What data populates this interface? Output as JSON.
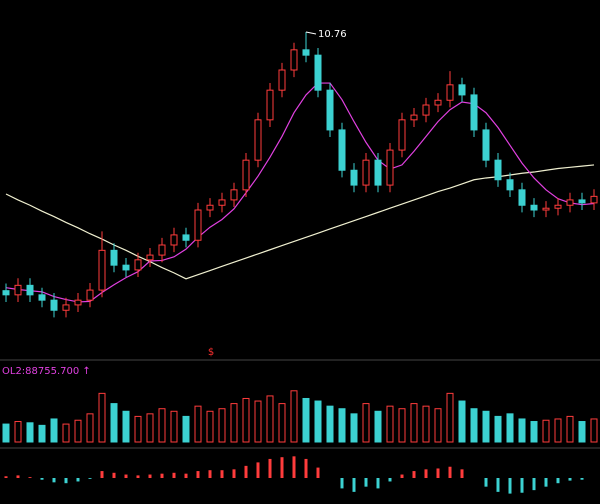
{
  "chart_data": [
    {
      "type": "candlestick",
      "high_label": "10.76",
      "signal": "$",
      "up_color": "#ff3c3c",
      "down_color": "#3cd2d2",
      "ylim": [
        5.4,
        11.3
      ],
      "open": [
        6.4,
        6.33,
        6.49,
        6.33,
        6.24,
        6.07,
        6.16,
        6.24,
        6.41,
        7.08,
        6.83,
        6.75,
        6.92,
        7.0,
        7.17,
        7.34,
        7.25,
        7.76,
        7.84,
        7.93,
        8.1,
        8.6,
        9.28,
        9.78,
        10.12,
        10.46,
        10.37,
        9.78,
        9.11,
        8.43,
        8.18,
        8.6,
        8.18,
        8.77,
        9.28,
        9.36,
        9.53,
        9.61,
        9.87,
        9.7,
        9.11,
        8.6,
        8.27,
        8.1,
        7.84,
        7.76,
        7.79,
        7.84,
        7.93,
        7.88
      ],
      "high": [
        6.52,
        6.61,
        6.61,
        6.45,
        6.36,
        6.28,
        6.36,
        6.53,
        7.4,
        7.2,
        6.95,
        7.04,
        7.12,
        7.29,
        7.46,
        7.46,
        7.88,
        7.96,
        8.05,
        8.22,
        8.72,
        9.4,
        9.9,
        10.24,
        10.58,
        10.76,
        10.49,
        9.9,
        9.23,
        8.55,
        8.72,
        8.72,
        8.89,
        9.4,
        9.48,
        9.65,
        9.73,
        10.1,
        9.99,
        9.82,
        9.23,
        8.72,
        8.39,
        8.22,
        7.96,
        7.91,
        7.96,
        8.05,
        8.05,
        8.11
      ],
      "low": [
        6.21,
        6.21,
        6.21,
        6.12,
        5.95,
        5.95,
        6.04,
        6.12,
        6.29,
        6.71,
        6.63,
        6.63,
        6.8,
        6.88,
        7.05,
        7.13,
        7.13,
        7.64,
        7.72,
        7.81,
        7.98,
        8.48,
        9.16,
        9.66,
        10.0,
        10.25,
        9.66,
        8.99,
        8.31,
        8.06,
        8.06,
        8.06,
        8.06,
        8.65,
        9.16,
        9.24,
        9.41,
        9.49,
        9.58,
        8.99,
        8.48,
        8.15,
        7.98,
        7.72,
        7.64,
        7.64,
        7.67,
        7.72,
        7.76,
        7.76
      ],
      "close": [
        6.33,
        6.49,
        6.33,
        6.24,
        6.07,
        6.16,
        6.24,
        6.41,
        7.08,
        6.83,
        6.75,
        6.92,
        7.0,
        7.17,
        7.34,
        7.25,
        7.76,
        7.84,
        7.93,
        8.1,
        8.6,
        9.28,
        9.78,
        10.12,
        10.46,
        10.37,
        9.78,
        9.11,
        8.43,
        8.18,
        8.6,
        8.18,
        8.77,
        9.28,
        9.36,
        9.53,
        9.61,
        9.87,
        9.7,
        9.11,
        8.6,
        8.27,
        8.1,
        7.84,
        7.76,
        7.79,
        7.84,
        7.93,
        7.88,
        7.99
      ],
      "lines": [
        {
          "color": "#f0f0d0",
          "values": [
            8.03,
            7.93,
            7.84,
            7.74,
            7.65,
            7.55,
            7.46,
            7.36,
            7.27,
            7.17,
            7.08,
            6.98,
            6.89,
            6.79,
            6.7,
            6.6,
            6.67,
            6.74,
            6.81,
            6.88,
            6.95,
            7.02,
            7.09,
            7.16,
            7.23,
            7.3,
            7.37,
            7.44,
            7.51,
            7.58,
            7.65,
            7.72,
            7.79,
            7.86,
            7.93,
            8.0,
            8.07,
            8.13,
            8.2,
            8.27,
            8.3,
            8.32,
            8.35,
            8.38,
            8.4,
            8.43,
            8.46,
            8.48,
            8.5,
            8.52
          ]
        },
        {
          "color": "#e040e0",
          "values": [
            6.45,
            6.42,
            6.4,
            6.38,
            6.3,
            6.25,
            6.21,
            6.22,
            6.37,
            6.5,
            6.62,
            6.72,
            6.9,
            6.91,
            6.97,
            7.1,
            7.3,
            7.47,
            7.6,
            7.78,
            8.05,
            8.33,
            8.65,
            9.0,
            9.4,
            9.7,
            9.9,
            9.9,
            9.62,
            9.25,
            8.9,
            8.6,
            8.45,
            8.52,
            8.75,
            9.0,
            9.25,
            9.45,
            9.58,
            9.55,
            9.4,
            9.15,
            8.85,
            8.55,
            8.3,
            8.1,
            7.95,
            7.88,
            7.85,
            7.87
          ]
        }
      ]
    },
    {
      "type": "bar",
      "title": "OL2:88755.700 ↑",
      "title_color": "#e040e0",
      "ylim": [
        0,
        250000
      ],
      "values": [
        70000,
        80000,
        75000,
        65000,
        90000,
        70000,
        85000,
        110000,
        190000,
        150000,
        120000,
        100000,
        110000,
        130000,
        120000,
        100000,
        140000,
        120000,
        130000,
        150000,
        170000,
        160000,
        180000,
        150000,
        200000,
        170000,
        160000,
        140000,
        130000,
        110000,
        150000,
        120000,
        140000,
        130000,
        150000,
        140000,
        130000,
        190000,
        160000,
        130000,
        120000,
        100000,
        110000,
        90000,
        80000,
        85000,
        90000,
        100000,
        80000,
        90000
      ]
    },
    {
      "type": "bar",
      "ylim": [
        -0.3,
        0.3
      ],
      "up_color": "#ff3c3c",
      "down_color": "#3cd2d2",
      "values": [
        0.02,
        0.03,
        0.01,
        -0.02,
        -0.05,
        -0.06,
        -0.04,
        -0.01,
        0.08,
        0.06,
        0.04,
        0.03,
        0.04,
        0.05,
        0.06,
        0.05,
        0.08,
        0.09,
        0.09,
        0.1,
        0.14,
        0.18,
        0.22,
        0.24,
        0.25,
        0.22,
        0.12,
        0.0,
        -0.12,
        -0.16,
        -0.1,
        -0.12,
        -0.04,
        0.04,
        0.08,
        0.1,
        0.11,
        0.13,
        0.1,
        0.0,
        -0.1,
        -0.16,
        -0.18,
        -0.17,
        -0.14,
        -0.1,
        -0.06,
        -0.03,
        -0.02,
        0.0
      ]
    }
  ]
}
